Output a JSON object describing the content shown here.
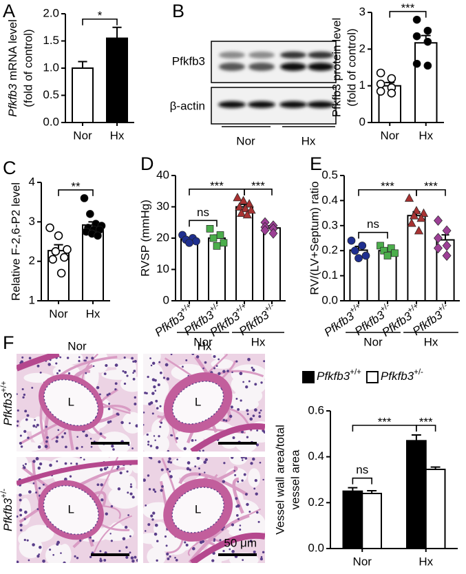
{
  "chart_data": [
    {
      "type": "bar",
      "panel": "A",
      "ylabel": [
        "Pfkfb3 mRNA level",
        "(fold of control)"
      ],
      "categories": [
        "Nor",
        "Hx"
      ],
      "values": [
        1.0,
        1.55
      ],
      "errors": [
        0.12,
        0.2
      ],
      "bar_colors": [
        "#ffffff",
        "#000000"
      ],
      "ylim": [
        0,
        2
      ],
      "yticks": [
        {
          "value": 0,
          "label": "0.0"
        },
        0.5,
        {
          "value": 1,
          "label": "1.0"
        },
        1.5,
        {
          "value": 2,
          "label": "2.0"
        }
      ],
      "annotations": [
        {
          "text": "*",
          "pair": [
            0,
            1
          ]
        }
      ]
    },
    {
      "type": "dot-bar",
      "panel": "B",
      "ylabel": [
        "Pfkfb3 protein level",
        "(fold of control)"
      ],
      "categories": [
        "Nor",
        "Hx"
      ],
      "values": [
        1.0,
        2.17
      ],
      "errors": [
        0.09,
        0.2
      ],
      "bar_color": "#ffffff",
      "points": [
        [
          1.35,
          1.2,
          1.05,
          0.95,
          0.85,
          0.8
        ],
        [
          2.8,
          2.5,
          2.35,
          2.2,
          1.6,
          1.55
        ]
      ],
      "point_colors": [
        "#ffffff",
        "#000000"
      ],
      "markers": [
        "circle",
        "circle"
      ],
      "ylim": [
        0,
        3
      ],
      "yticks": [
        0,
        1,
        2,
        3
      ],
      "annotations": [
        {
          "text": "***",
          "pair": [
            0,
            1
          ]
        }
      ]
    },
    {
      "type": "dot-bar",
      "panel": "C",
      "ylabel": [
        "Relative F-2,6-P2 level"
      ],
      "categories": [
        "Nor",
        "Hx"
      ],
      "values": [
        2.27,
        2.92
      ],
      "errors": [
        0.15,
        0.08
      ],
      "bar_color": "#ffffff",
      "points": [
        [
          2.85,
          2.65,
          2.3,
          2.25,
          2.1,
          2.05,
          1.7
        ],
        [
          3.6,
          3.2,
          2.95,
          2.9,
          2.85,
          2.8,
          2.8,
          2.75,
          2.7,
          2.65
        ]
      ],
      "point_colors": [
        "#ffffff",
        "#000000"
      ],
      "markers": [
        "circle",
        "circle"
      ],
      "ylim": [
        1,
        4
      ],
      "yticks": [
        1,
        2,
        3,
        4
      ],
      "annotations": [
        {
          "text": "**",
          "pair": [
            0,
            1
          ]
        }
      ]
    },
    {
      "type": "dot-bar",
      "panel": "D",
      "ylabel": [
        "RVSP (mmHg)"
      ],
      "categories": [
        "Pfkfb3+/+",
        "Pfkfb3+/-",
        "Pfkfb3+/+",
        "Pfkfb3+/-"
      ],
      "groups": [
        {
          "name": "Nor",
          "categories": [
            0,
            1
          ]
        },
        {
          "name": "Hx",
          "categories": [
            2,
            3
          ]
        }
      ],
      "values": [
        19.6,
        20,
        30,
        23.25
      ],
      "errors": [
        0.6,
        1.0,
        0.8,
        0.7
      ],
      "bar_color": "#ffffff",
      "points": [
        [
          21,
          20,
          19.5,
          19,
          18.5
        ],
        [
          23,
          21,
          20,
          18.5,
          17.5
        ],
        [
          33,
          32,
          31,
          30,
          29.5,
          29,
          28,
          27.5
        ],
        [
          25,
          24,
          23.5,
          23,
          22.5,
          21.5
        ]
      ],
      "point_colors": [
        "#1f2f8f",
        "#4cae4c",
        "#a83232",
        "#9c3f95"
      ],
      "markers": [
        "circle",
        "square",
        "triangle",
        "diamond"
      ],
      "ylim": [
        0,
        40
      ],
      "yticks": [
        0,
        10,
        20,
        30,
        40
      ],
      "annotations": [
        {
          "text": "ns",
          "pair": [
            0,
            1
          ]
        },
        {
          "text": "***",
          "pair": [
            0,
            2
          ]
        },
        {
          "text": "***",
          "pair": [
            2,
            3
          ]
        }
      ]
    },
    {
      "type": "dot-bar",
      "panel": "E",
      "ylabel": [
        "RV/(LV+Septum) ratio"
      ],
      "categories": [
        "Pfkfb3+/+",
        "Pfkfb3+/-",
        "Pfkfb3+/+",
        "Pfkfb3+/-"
      ],
      "groups": [
        {
          "name": "Nor",
          "categories": [
            0,
            1
          ]
        },
        {
          "name": "Hx",
          "categories": [
            2,
            3
          ]
        }
      ],
      "values": [
        0.202,
        0.2,
        0.34,
        0.243
      ],
      "errors": [
        0.015,
        0.01,
        0.015,
        0.02
      ],
      "bar_color": "#ffffff",
      "points": [
        [
          0.24,
          0.22,
          0.2,
          0.18,
          0.17
        ],
        [
          0.22,
          0.21,
          0.2,
          0.19,
          0.18
        ],
        [
          0.41,
          0.36,
          0.35,
          0.34,
          0.33,
          0.31,
          0.28
        ],
        [
          0.32,
          0.28,
          0.25,
          0.22,
          0.21,
          0.18
        ]
      ],
      "point_colors": [
        "#1f2f8f",
        "#4cae4c",
        "#a83232",
        "#9c3f95"
      ],
      "markers": [
        "circle",
        "square",
        "triangle",
        "diamond"
      ],
      "ylim": [
        0,
        0.5
      ],
      "yticks": [
        {
          "value": 0,
          "label": "0.0"
        },
        0.1,
        0.2,
        0.3,
        0.4,
        0.5
      ],
      "annotations": [
        {
          "text": "ns",
          "pair": [
            0,
            1
          ]
        },
        {
          "text": "***",
          "pair": [
            0,
            2
          ]
        },
        {
          "text": "***",
          "pair": [
            2,
            3
          ]
        }
      ]
    },
    {
      "type": "grouped-bar",
      "panel": "F",
      "ylabel": [
        "Vessel wall area/total",
        "vessel area"
      ],
      "categories": [
        "Nor",
        "Hx"
      ],
      "series": [
        {
          "name": "Pfkfb3+/+",
          "color": "#000000",
          "values": [
            0.25,
            0.47
          ],
          "errors": [
            0.015,
            0.025
          ]
        },
        {
          "name": "Pfkfb3+/-",
          "color": "#ffffff",
          "values": [
            0.24,
            0.345
          ],
          "errors": [
            0.012,
            0.01
          ]
        }
      ],
      "legend": "top",
      "ylim": [
        0,
        0.6
      ],
      "yticks": [
        {
          "value": 0,
          "label": "0.0"
        },
        0.2,
        0.4,
        0.6
      ],
      "annotations": [
        {
          "text": "ns",
          "pair": [
            [
              0,
              0
            ],
            [
              0,
              1
            ]
          ]
        },
        {
          "text": "***",
          "pair": [
            [
              0,
              0
            ],
            [
              1,
              0
            ]
          ]
        },
        {
          "text": "***",
          "pair": [
            [
              1,
              0
            ],
            [
              1,
              1
            ]
          ]
        }
      ]
    }
  ],
  "western_blot": {
    "bands": [
      "Pfkfb3",
      "β-actin"
    ],
    "groups": [
      "Nor",
      "Hx"
    ]
  },
  "histology": {
    "columns": [
      "Nor",
      "Hx"
    ],
    "rows": [
      "Pfkfb3+/+",
      "Pfkfb3+/-"
    ],
    "lumen_labels": [
      "L",
      "L",
      "L",
      "L"
    ],
    "scale_bar": "50 μm"
  }
}
